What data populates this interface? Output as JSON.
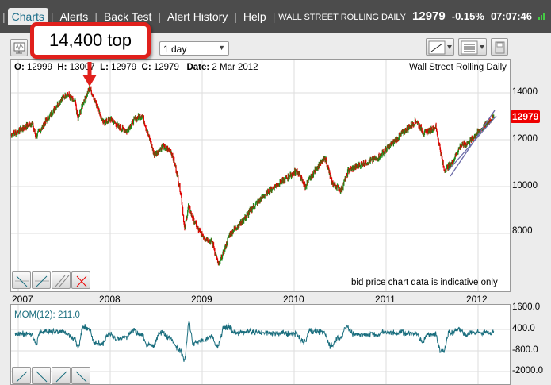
{
  "nav": {
    "tabs": [
      {
        "label": "Charts",
        "active": true
      },
      {
        "label": "Alerts"
      },
      {
        "label": "Back Test"
      },
      {
        "label": "Alert History"
      },
      {
        "label": "Help"
      }
    ]
  },
  "ticker": {
    "name": "WALL STREET ROLLING DAILY",
    "price": "12979",
    "change": "-0.15%",
    "time": "07:07:46"
  },
  "toolbar": {
    "period": "1 day"
  },
  "ohlc": {
    "o_label": "O:",
    "o": "12999",
    "h_label": "H:",
    "h": "13007",
    "l_label": "L:",
    "l": "12979",
    "c_label": "C:",
    "c": "12979",
    "date_label": "Date:",
    "date": "2 Mar 2012"
  },
  "instrument": "Wall Street Rolling Daily",
  "disclaimer": "bid price chart data is indicative only",
  "last_price_badge": "12979",
  "callout": "14,400 top",
  "momentum": {
    "label": "MOM(12): 211.0",
    "y_ticks": [
      "1600.0",
      "400.0",
      "-800.0",
      "-2000.0"
    ]
  },
  "colors": {
    "up": "#1a8a1a",
    "down": "#e00000",
    "momentum": "#1a6e7e",
    "callout": "#e0201c"
  },
  "chart_data": {
    "type": "line",
    "title": "Wall Street Rolling Daily",
    "x_ticks": [
      "2007",
      "2008",
      "2009",
      "2010",
      "2011",
      "2012"
    ],
    "y_ticks": [
      "14000",
      "12000",
      "10000",
      "8000"
    ],
    "ylim": [
      5800,
      15700
    ],
    "xlim": [
      2006.92,
      2012.35
    ],
    "series": [
      {
        "name": "price",
        "points": [
          [
            2006.92,
            12200
          ],
          [
            2007.15,
            12710
          ],
          [
            2007.19,
            12140
          ],
          [
            2007.32,
            12880
          ],
          [
            2007.45,
            13630
          ],
          [
            2007.53,
            13970
          ],
          [
            2007.62,
            13560
          ],
          [
            2007.65,
            12880
          ],
          [
            2007.71,
            13630
          ],
          [
            2007.78,
            14200
          ],
          [
            2007.88,
            13220
          ],
          [
            2007.92,
            12710
          ],
          [
            2008.01,
            12880
          ],
          [
            2008.09,
            12540
          ],
          [
            2008.18,
            12370
          ],
          [
            2008.27,
            12880
          ],
          [
            2008.35,
            13050
          ],
          [
            2008.4,
            12370
          ],
          [
            2008.48,
            11360
          ],
          [
            2008.57,
            11700
          ],
          [
            2008.66,
            11530
          ],
          [
            2008.72,
            10680
          ],
          [
            2008.77,
            9660
          ],
          [
            2008.81,
            8140
          ],
          [
            2008.85,
            9150
          ],
          [
            2008.9,
            8640
          ],
          [
            2008.96,
            8140
          ],
          [
            2009.03,
            7800
          ],
          [
            2009.11,
            7630
          ],
          [
            2009.18,
            6610
          ],
          [
            2009.3,
            7970
          ],
          [
            2009.43,
            8480
          ],
          [
            2009.56,
            9150
          ],
          [
            2009.73,
            9830
          ],
          [
            2009.91,
            10340
          ],
          [
            2010.03,
            10680
          ],
          [
            2010.12,
            10000
          ],
          [
            2010.25,
            10850
          ],
          [
            2010.34,
            11190
          ],
          [
            2010.41,
            10170
          ],
          [
            2010.51,
            9830
          ],
          [
            2010.59,
            10680
          ],
          [
            2010.77,
            11020
          ],
          [
            2010.9,
            11190
          ],
          [
            2011.03,
            11700
          ],
          [
            2011.2,
            12370
          ],
          [
            2011.33,
            12810
          ],
          [
            2011.41,
            12270
          ],
          [
            2011.54,
            12540
          ],
          [
            2011.59,
            11530
          ],
          [
            2011.63,
            10680
          ],
          [
            2011.72,
            11020
          ],
          [
            2011.8,
            11700
          ],
          [
            2011.89,
            11860
          ],
          [
            2011.97,
            12200
          ],
          [
            2012.06,
            12540
          ],
          [
            2012.17,
            12979
          ]
        ]
      }
    ]
  }
}
